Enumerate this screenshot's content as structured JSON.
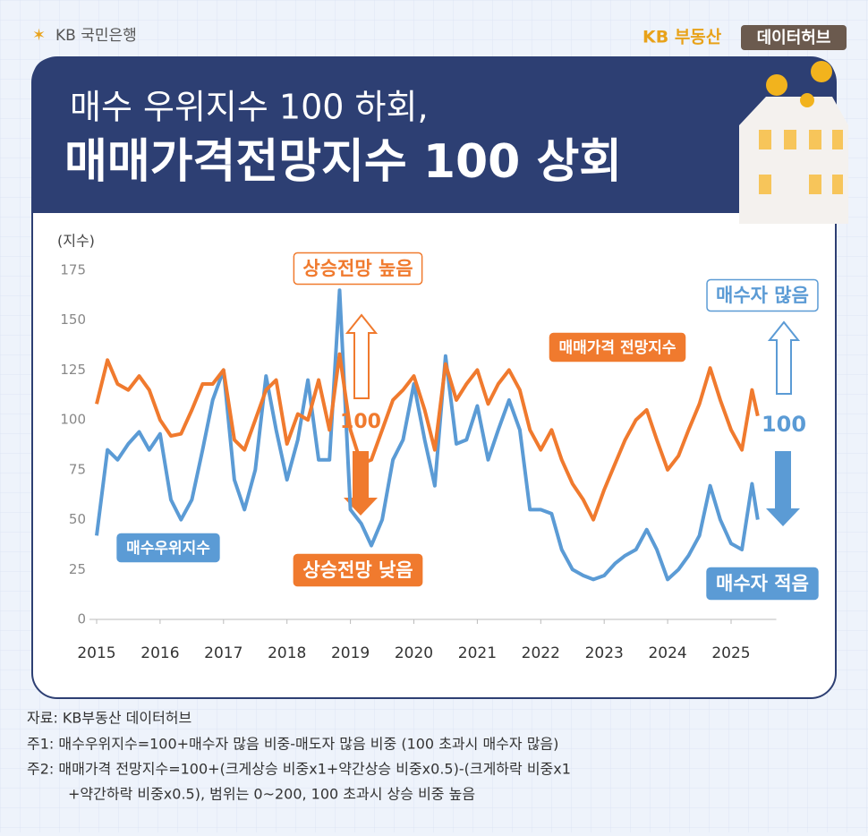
{
  "header": {
    "bank": "KB 국민은행",
    "brand": "KB 부동산",
    "hub": "데이터허브"
  },
  "chart_data": {
    "type": "line",
    "title_lines": [
      "매수 우위지수 100 하회,",
      "매매가격전망지수 100 상회"
    ],
    "y_label": "(지수)",
    "x": [
      2015,
      2015.17,
      2015.33,
      2015.5,
      2015.67,
      2015.83,
      2016,
      2016.17,
      2016.33,
      2016.5,
      2016.67,
      2016.83,
      2017,
      2017.17,
      2017.33,
      2017.5,
      2017.67,
      2017.83,
      2018,
      2018.17,
      2018.33,
      2018.5,
      2018.67,
      2018.83,
      2019,
      2019.17,
      2019.33,
      2019.5,
      2019.67,
      2019.83,
      2020,
      2020.17,
      2020.33,
      2020.5,
      2020.67,
      2020.83,
      2021,
      2021.17,
      2021.33,
      2021.5,
      2021.67,
      2021.83,
      2022,
      2022.17,
      2022.33,
      2022.5,
      2022.67,
      2022.83,
      2023,
      2023.17,
      2023.33,
      2023.5,
      2023.67,
      2023.83,
      2024,
      2024.17,
      2024.33,
      2024.5,
      2024.67,
      2024.83,
      2025,
      2025.17,
      2025.33,
      2025.42
    ],
    "series": [
      {
        "name": "매매가격 전망지수",
        "color": "#f07a2e",
        "values": [
          108,
          130,
          118,
          115,
          122,
          115,
          100,
          92,
          93,
          105,
          118,
          118,
          125,
          90,
          85,
          100,
          115,
          120,
          88,
          103,
          100,
          120,
          95,
          133,
          95,
          78,
          80,
          95,
          110,
          115,
          122,
          105,
          85,
          128,
          110,
          118,
          125,
          108,
          118,
          125,
          115,
          95,
          85,
          95,
          80,
          68,
          60,
          50,
          65,
          78,
          90,
          100,
          105,
          90,
          75,
          82,
          95,
          108,
          126,
          110,
          95,
          85,
          115,
          102
        ]
      },
      {
        "name": "매수우위지수",
        "color": "#5b9bd5",
        "values": [
          42,
          85,
          80,
          88,
          94,
          85,
          93,
          60,
          50,
          60,
          85,
          110,
          125,
          70,
          55,
          75,
          122,
          95,
          70,
          90,
          120,
          80,
          80,
          165,
          55,
          48,
          37,
          50,
          80,
          90,
          118,
          90,
          67,
          132,
          88,
          90,
          107,
          80,
          95,
          110,
          95,
          55,
          55,
          53,
          35,
          25,
          22,
          20,
          22,
          28,
          32,
          35,
          45,
          35,
          20,
          25,
          32,
          42,
          67,
          50,
          38,
          35,
          68,
          50
        ]
      }
    ],
    "xlim": [
      2015,
      2025.6
    ],
    "xticks": [
      2015,
      2016,
      2017,
      2018,
      2019,
      2020,
      2021,
      2022,
      2023,
      2024,
      2025
    ],
    "ylim": [
      0,
      175
    ],
    "yticks": [
      0,
      25,
      50,
      75,
      100,
      125,
      150,
      175
    ],
    "grid": false,
    "annotations": [
      "상승전망 높음",
      "상승전망 낮음",
      "100",
      "매수자 많음",
      "매수자 적음",
      "100"
    ]
  },
  "footer": {
    "source": "자료: KB부동산 데이터허브",
    "notes": [
      "주1: 매수우위지수=100+매수자 많음 비중-매도자 많음 비중 (100 초과시 매수자 많음)",
      "주2: 매매가격 전망지수=100+(크게상승 비중x1+약간상승 비중x0.5)-(크게하락 비중x1",
      "+약간하락 비중x0.5), 범위는 0~200, 100 초과시 상승 비중 높음"
    ]
  }
}
